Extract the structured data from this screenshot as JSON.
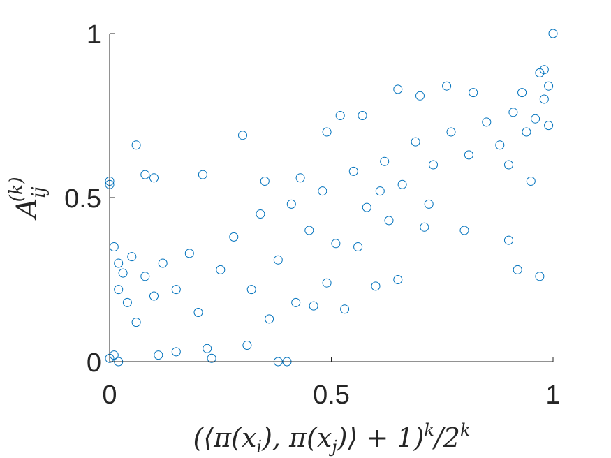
{
  "chart_data": {
    "type": "scatter",
    "marker": "open-circle",
    "color": "#0072BD",
    "xlabel": "(⟨π(x_i), π(x_j)⟩ + 1)^k / 2^k",
    "ylabel": "A_ij^(k)",
    "xlim": [
      0,
      1
    ],
    "ylim": [
      0,
      1
    ],
    "x_ticks": [
      "0",
      "0.5",
      "1"
    ],
    "y_ticks": [
      "0",
      "0.5",
      "1"
    ],
    "grid": false,
    "box": false,
    "series": [
      {
        "points": [
          [
            1.0,
            1.0
          ],
          [
            0.98,
            0.89
          ],
          [
            0.97,
            0.88
          ],
          [
            0.99,
            0.84
          ],
          [
            0.98,
            0.8
          ],
          [
            0.76,
            0.84
          ],
          [
            0.65,
            0.83
          ],
          [
            0.82,
            0.82
          ],
          [
            0.93,
            0.82
          ],
          [
            0.7,
            0.81
          ],
          [
            0.57,
            0.75
          ],
          [
            0.52,
            0.75
          ],
          [
            0.49,
            0.7
          ],
          [
            0.3,
            0.69
          ],
          [
            0.06,
            0.66
          ],
          [
            0.08,
            0.57
          ],
          [
            0.21,
            0.57
          ],
          [
            0.0,
            0.55
          ],
          [
            0.0,
            0.54
          ],
          [
            0.1,
            0.56
          ],
          [
            0.35,
            0.55
          ],
          [
            0.43,
            0.56
          ],
          [
            0.61,
            0.52
          ],
          [
            0.72,
            0.48
          ],
          [
            0.9,
            0.6
          ],
          [
            0.95,
            0.55
          ],
          [
            0.9,
            0.37
          ],
          [
            0.92,
            0.28
          ],
          [
            0.97,
            0.26
          ],
          [
            0.8,
            0.4
          ],
          [
            0.71,
            0.41
          ],
          [
            0.63,
            0.43
          ],
          [
            0.56,
            0.35
          ],
          [
            0.6,
            0.23
          ],
          [
            0.65,
            0.25
          ],
          [
            0.53,
            0.16
          ],
          [
            0.49,
            0.24
          ],
          [
            0.42,
            0.18
          ],
          [
            0.4,
            0.0
          ],
          [
            0.38,
            0.0
          ],
          [
            0.46,
            0.17
          ],
          [
            0.36,
            0.13
          ],
          [
            0.31,
            0.05
          ],
          [
            0.22,
            0.04
          ],
          [
            0.23,
            0.01
          ],
          [
            0.15,
            0.03
          ],
          [
            0.11,
            0.02
          ],
          [
            0.02,
            0.0
          ],
          [
            0.01,
            0.02
          ],
          [
            0.0,
            0.01
          ],
          [
            0.01,
            0.35
          ],
          [
            0.02,
            0.3
          ],
          [
            0.03,
            0.27
          ],
          [
            0.02,
            0.22
          ],
          [
            0.04,
            0.18
          ],
          [
            0.05,
            0.32
          ],
          [
            0.06,
            0.12
          ],
          [
            0.08,
            0.26
          ],
          [
            0.1,
            0.2
          ],
          [
            0.12,
            0.3
          ],
          [
            0.15,
            0.22
          ],
          [
            0.18,
            0.33
          ],
          [
            0.2,
            0.15
          ],
          [
            0.25,
            0.28
          ],
          [
            0.28,
            0.38
          ],
          [
            0.32,
            0.22
          ],
          [
            0.34,
            0.45
          ],
          [
            0.38,
            0.31
          ],
          [
            0.41,
            0.48
          ],
          [
            0.45,
            0.4
          ],
          [
            0.48,
            0.52
          ],
          [
            0.51,
            0.36
          ],
          [
            0.55,
            0.58
          ],
          [
            0.58,
            0.47
          ],
          [
            0.62,
            0.61
          ],
          [
            0.66,
            0.54
          ],
          [
            0.69,
            0.67
          ],
          [
            0.73,
            0.6
          ],
          [
            0.77,
            0.7
          ],
          [
            0.81,
            0.63
          ],
          [
            0.85,
            0.73
          ],
          [
            0.88,
            0.66
          ],
          [
            0.91,
            0.76
          ],
          [
            0.94,
            0.7
          ],
          [
            0.96,
            0.74
          ],
          [
            0.99,
            0.72
          ]
        ]
      }
    ]
  }
}
